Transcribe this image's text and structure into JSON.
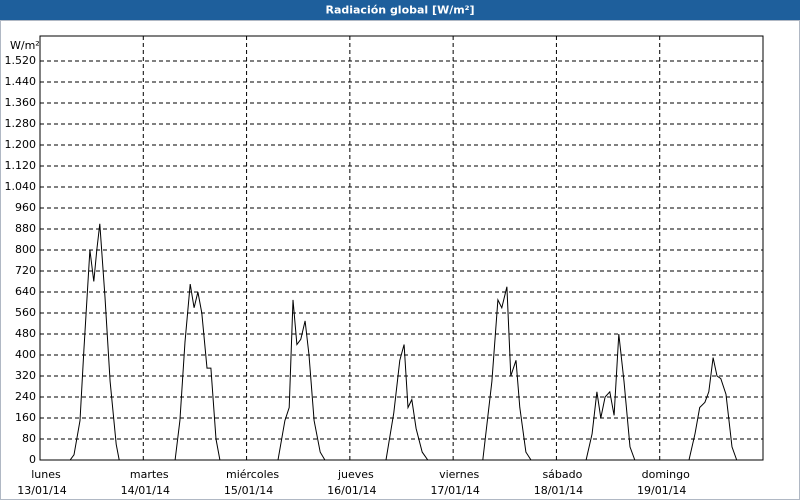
{
  "chart_data": {
    "type": "line",
    "title": "Radiación global [W/m²]",
    "y_label": "W/m²",
    "x": [
      0,
      7.0,
      7.9,
      9.3,
      10.2,
      11.6,
      12.5,
      13.2,
      13.9,
      15.1,
      16.3,
      17.7,
      18.4,
      31.4,
      32.5,
      33.7,
      34.9,
      35.8,
      36.7,
      37.6,
      38.8,
      39.7,
      40.9,
      41.8,
      55.3,
      56.9,
      57.9,
      58.8,
      59.7,
      60.6,
      61.6,
      62.5,
      63.7,
      65.1,
      66.2,
      80.4,
      82.2,
      83.6,
      84.6,
      85.5,
      86.4,
      87.4,
      88.8,
      90.1,
      102.9,
      105.0,
      106.4,
      107.3,
      108.5,
      109.4,
      110.6,
      111.5,
      112.9,
      114.1,
      126.9,
      128.3,
      129.4,
      130.3,
      131.3,
      132.4,
      133.4,
      134.5,
      135.7,
      137.1,
      138.2,
      150.8,
      152.2,
      153.3,
      154.5,
      155.4,
      156.4,
      157.3,
      158.2,
      159.4,
      160.8,
      161.9,
      166.6
    ],
    "values": [
      0,
      0,
      20,
      150,
      420,
      800,
      680,
      800,
      900,
      620,
      300,
      60,
      0,
      0,
      150,
      450,
      670,
      580,
      640,
      560,
      350,
      350,
      80,
      0,
      0,
      150,
      200,
      610,
      440,
      460,
      530,
      400,
      150,
      30,
      0,
      0,
      180,
      380,
      440,
      200,
      230,
      120,
      30,
      0,
      0,
      300,
      610,
      580,
      660,
      320,
      380,
      200,
      30,
      0,
      0,
      100,
      260,
      160,
      240,
      260,
      170,
      480,
      300,
      50,
      0,
      0,
      100,
      200,
      220,
      260,
      390,
      320,
      310,
      250,
      50,
      0,
      0
    ],
    "color": "#000000",
    "xlim": [
      0,
      168
    ],
    "xticks": [
      {
        "value": 0,
        "label": "lunes"
      },
      {
        "value": 24,
        "label": "martes"
      },
      {
        "value": 48,
        "label": "miércoles"
      },
      {
        "value": 72,
        "label": "jueves"
      },
      {
        "value": 96,
        "label": "viernes"
      },
      {
        "value": 120,
        "label": "sábado"
      },
      {
        "value": 144,
        "label": "domingo"
      }
    ],
    "xtick_dates": [
      "13/01/14",
      "14/01/14",
      "15/01/14",
      "16/01/14",
      "17/01/14",
      "18/01/14",
      "19/01/14"
    ],
    "ylim": [
      0,
      1600
    ],
    "yticks": [
      0,
      80,
      160,
      240,
      320,
      400,
      480,
      560,
      640,
      720,
      800,
      880,
      960,
      {
        "value": 1040,
        "label": "1.040"
      },
      {
        "value": 1120,
        "label": "1.120"
      },
      {
        "value": 1200,
        "label": "1.200"
      },
      {
        "value": 1280,
        "label": "1.280"
      },
      {
        "value": 1360,
        "label": "1.360"
      },
      {
        "value": 1440,
        "label": "1.440"
      },
      {
        "value": 1520,
        "label": "1.520"
      }
    ],
    "grid": true
  }
}
